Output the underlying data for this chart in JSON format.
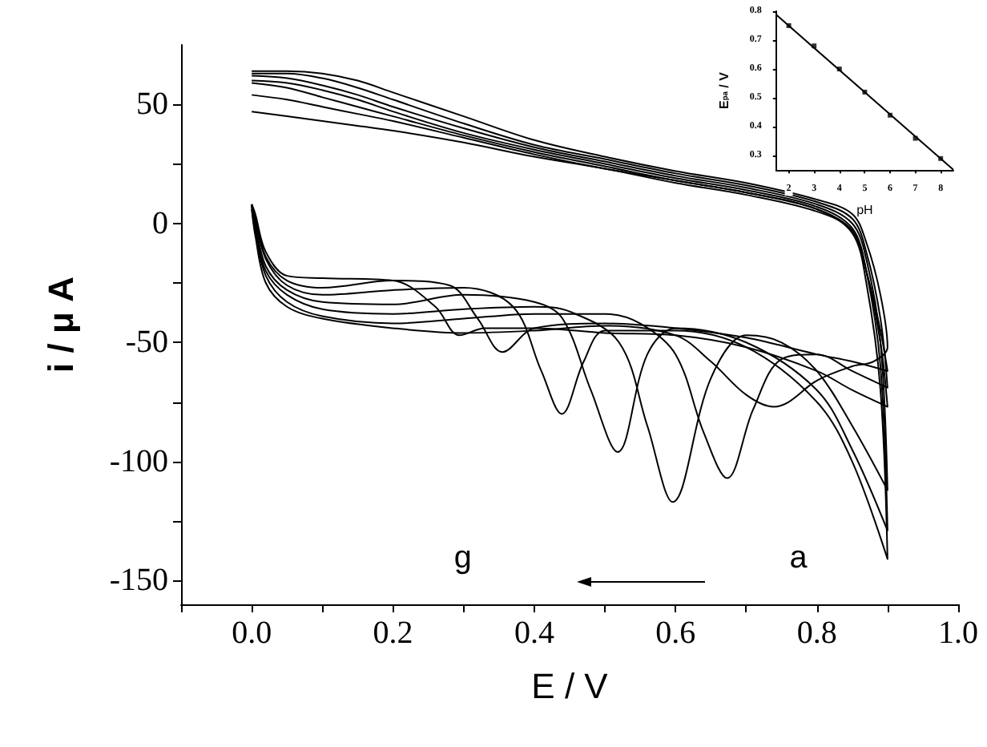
{
  "chart_data": [
    {
      "type": "line",
      "xlabel": "E / V",
      "ylabel": "i / μ A",
      "marker": "none",
      "xlim": [
        -0.1,
        1.0
      ],
      "xticks": [
        {
          "value": -0.1,
          "label": null
        },
        {
          "value": 0,
          "label": "0.0"
        },
        {
          "value": 0.1,
          "label": null
        },
        {
          "value": 0.2,
          "label": "0.2"
        },
        {
          "value": 0.3,
          "label": null
        },
        {
          "value": 0.4,
          "label": "0.4"
        },
        {
          "value": 0.5,
          "label": null
        },
        {
          "value": 0.6,
          "label": "0.6"
        },
        {
          "value": 0.7,
          "label": null
        },
        {
          "value": 0.8,
          "label": "0.8"
        },
        {
          "value": 0.9,
          "label": null
        },
        {
          "value": 1.0,
          "label": "1.0"
        }
      ],
      "ylim": [
        -160,
        75
      ],
      "yticks": [
        -150,
        {
          "value": -125,
          "label": null
        },
        -100,
        {
          "value": -75,
          "label": null
        },
        -50,
        {
          "value": -25,
          "label": null
        },
        0,
        {
          "value": 25,
          "label": null
        },
        50
      ],
      "annotations": [
        "g",
        "a"
      ],
      "series": [
        {
          "color": "#000000",
          "x": [
            0,
            0.05,
            0.1,
            0.15,
            0.2,
            0.3,
            0.4,
            0.5,
            0.6,
            0.7,
            0.8,
            0.85,
            0.87,
            0.89,
            0.9,
            0.88,
            0.85,
            0.8,
            0.76,
            0.739,
            0.7,
            0.65,
            0.6,
            0.5,
            0.4,
            0.3,
            0.2,
            0.1,
            0.05,
            0.02,
            0.005,
            0
          ],
          "values": [
            64,
            64,
            63,
            60,
            55,
            45,
            35,
            28,
            22,
            17,
            10,
            4,
            -8,
            -30,
            -52,
            -58,
            -60,
            -66,
            -75,
            -77,
            -72,
            -58,
            -47,
            -43,
            -45,
            -46,
            -44,
            -40,
            -35,
            -25,
            -5,
            6
          ]
        },
        {
          "color": "#000000",
          "x": [
            0,
            0.05,
            0.1,
            0.15,
            0.2,
            0.3,
            0.4,
            0.5,
            0.6,
            0.7,
            0.8,
            0.85,
            0.87,
            0.89,
            0.9,
            0.85,
            0.8,
            0.75,
            0.71,
            0.673,
            0.64,
            0.6,
            0.55,
            0.5,
            0.4,
            0.3,
            0.2,
            0.1,
            0.05,
            0.02,
            0.005,
            0
          ],
          "values": [
            63,
            63,
            61,
            57,
            52,
            42,
            33,
            27,
            21,
            16,
            9,
            2,
            -12,
            -40,
            -69,
            -62,
            -55,
            -57,
            -78,
            -107,
            -88,
            -55,
            -42,
            -38,
            -38,
            -40,
            -42,
            -39,
            -33,
            -22,
            -3,
            7
          ]
        },
        {
          "color": "#000000",
          "x": [
            0,
            0.05,
            0.1,
            0.15,
            0.2,
            0.3,
            0.4,
            0.5,
            0.6,
            0.7,
            0.8,
            0.85,
            0.87,
            0.89,
            0.9,
            0.85,
            0.8,
            0.75,
            0.7,
            0.65,
            0.596,
            0.56,
            0.52,
            0.45,
            0.4,
            0.3,
            0.2,
            0.1,
            0.05,
            0.02,
            0.005,
            0
          ],
          "values": [
            62,
            61,
            58,
            54,
            49,
            40,
            32,
            26,
            20,
            15,
            8,
            0,
            -15,
            -50,
            -112,
            -85,
            -62,
            -50,
            -47,
            -65,
            -117,
            -85,
            -50,
            -37,
            -35,
            -36,
            -38,
            -36,
            -30,
            -20,
            -2,
            8
          ]
        },
        {
          "color": "#000000",
          "x": [
            0,
            0.05,
            0.1,
            0.15,
            0.2,
            0.3,
            0.4,
            0.5,
            0.6,
            0.7,
            0.8,
            0.85,
            0.87,
            0.89,
            0.9,
            0.85,
            0.8,
            0.7,
            0.6,
            0.56,
            0.518,
            0.48,
            0.44,
            0.4,
            0.3,
            0.2,
            0.1,
            0.05,
            0.02,
            0.005,
            0
          ],
          "values": [
            60,
            59,
            56,
            52,
            47,
            38,
            31,
            25,
            19,
            14,
            7,
            -2,
            -20,
            -60,
            -129,
            -95,
            -70,
            -50,
            -44,
            -55,
            -96,
            -70,
            -40,
            -33,
            -30,
            -34,
            -33,
            -28,
            -18,
            0,
            8
          ]
        },
        {
          "color": "#000000",
          "x": [
            0,
            0.05,
            0.1,
            0.15,
            0.2,
            0.3,
            0.4,
            0.5,
            0.6,
            0.7,
            0.8,
            0.85,
            0.87,
            0.89,
            0.9,
            0.85,
            0.8,
            0.7,
            0.6,
            0.5,
            0.47,
            0.439,
            0.41,
            0.37,
            0.3,
            0.2,
            0.1,
            0.05,
            0.02,
            0.005,
            0
          ],
          "values": [
            59,
            57,
            53,
            49,
            45,
            37,
            30,
            24,
            18,
            13,
            6,
            -4,
            -25,
            -70,
            -141,
            -100,
            -75,
            -52,
            -45,
            -45,
            -58,
            -80,
            -62,
            -35,
            -27,
            -28,
            -30,
            -26,
            -15,
            2,
            8
          ]
        },
        {
          "color": "#000000",
          "x": [
            0,
            0.05,
            0.1,
            0.15,
            0.2,
            0.3,
            0.4,
            0.5,
            0.6,
            0.7,
            0.8,
            0.85,
            0.87,
            0.89,
            0.9,
            0.85,
            0.8,
            0.7,
            0.6,
            0.5,
            0.4,
            0.355,
            0.32,
            0.28,
            0.2,
            0.1,
            0.05,
            0.02,
            0.005,
            0
          ],
          "values": [
            54,
            52,
            49,
            46,
            43,
            36,
            29,
            23,
            18,
            13,
            6,
            -3,
            -20,
            -45,
            -62,
            -58,
            -55,
            -48,
            -44,
            -42,
            -44,
            -54,
            -40,
            -26,
            -24,
            -27,
            -24,
            -14,
            3,
            8
          ]
        },
        {
          "color": "#000000",
          "x": [
            0,
            0.05,
            0.1,
            0.15,
            0.2,
            0.3,
            0.4,
            0.5,
            0.6,
            0.7,
            0.8,
            0.85,
            0.87,
            0.89,
            0.9,
            0.85,
            0.8,
            0.7,
            0.6,
            0.5,
            0.4,
            0.33,
            0.294,
            0.26,
            0.2,
            0.1,
            0.05,
            0.02,
            0.005,
            0
          ],
          "values": [
            47,
            45,
            43,
            41,
            39,
            34,
            28,
            23,
            17,
            12,
            5,
            -3,
            -20,
            -50,
            -77,
            -70,
            -62,
            -52,
            -47,
            -46,
            -44,
            -44,
            -47,
            -35,
            -24,
            -23,
            -22,
            -12,
            4,
            8
          ]
        }
      ]
    },
    {
      "type": "scatter",
      "xlabel": "pH",
      "ylabel": "E$_{pa}$ / V",
      "marker": "square",
      "xlim": [
        1.5,
        8.5
      ],
      "xticks": [
        2,
        3,
        4,
        5,
        6,
        7,
        8
      ],
      "ylim": [
        0.25,
        0.8
      ],
      "yticks": [
        0.3,
        0.4,
        0.5,
        0.6,
        0.7,
        0.8
      ],
      "series": [
        {
          "color": "#000000",
          "x": [
            2,
            3,
            4,
            5,
            6,
            7,
            8
          ],
          "values": [
            0.75,
            0.68,
            0.6,
            0.52,
            0.44,
            0.36,
            0.29
          ]
        },
        {
          "type": "line",
          "marker": "none",
          "color": "#000000",
          "x": [
            1.5,
            8.5
          ],
          "values": [
            0.788,
            0.251
          ]
        }
      ]
    }
  ]
}
